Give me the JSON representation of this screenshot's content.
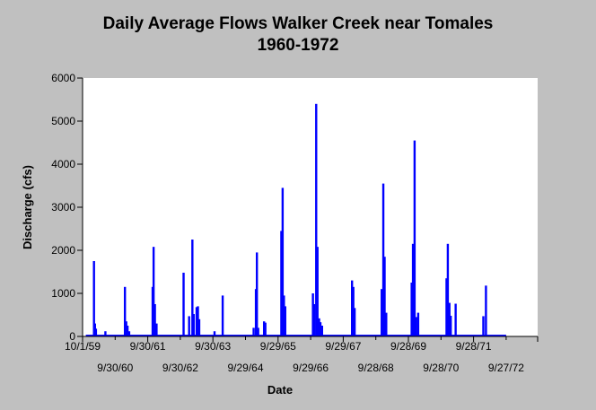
{
  "chart_data": {
    "type": "bar",
    "title": [
      "Daily Average Flows Walker Creek near Tomales",
      "1960-1972"
    ],
    "xlabel": "Date",
    "ylabel": "Discharge (cfs)",
    "ylim": [
      0,
      6000
    ],
    "yticks": [
      0,
      1000,
      2000,
      3000,
      4000,
      5000,
      6000
    ],
    "y_tick_labels": [
      "0",
      "1000",
      "2000",
      "3000",
      "4000",
      "5000",
      "6000"
    ],
    "x_tick_labels_row1": [
      "10/1/59",
      "9/30/61",
      "9/30/63",
      "9/29/65",
      "9/29/67",
      "9/28/69",
      "9/28/71"
    ],
    "x_tick_labels_row2": [
      "9/30/60",
      "9/30/62",
      "9/29/64",
      "9/29/66",
      "9/28/68",
      "9/28/70",
      "9/27/72"
    ],
    "grid": false,
    "bar_color": "#0000ff",
    "series": [
      {
        "values": [
          {
            "x": 1960.1,
            "y": 1750
          },
          {
            "x": 1960.13,
            "y": 300
          },
          {
            "x": 1960.16,
            "y": 180
          },
          {
            "x": 1960.45,
            "y": 120
          },
          {
            "x": 1961.05,
            "y": 1150
          },
          {
            "x": 1961.09,
            "y": 350
          },
          {
            "x": 1961.13,
            "y": 250
          },
          {
            "x": 1961.18,
            "y": 120
          },
          {
            "x": 1961.9,
            "y": 1150
          },
          {
            "x": 1961.93,
            "y": 2080
          },
          {
            "x": 1961.97,
            "y": 750
          },
          {
            "x": 1962.02,
            "y": 300
          },
          {
            "x": 1962.85,
            "y": 1480
          },
          {
            "x": 1963.02,
            "y": 470
          },
          {
            "x": 1963.12,
            "y": 2250
          },
          {
            "x": 1963.16,
            "y": 520
          },
          {
            "x": 1963.25,
            "y": 680
          },
          {
            "x": 1963.29,
            "y": 700
          },
          {
            "x": 1963.33,
            "y": 400
          },
          {
            "x": 1963.8,
            "y": 120
          },
          {
            "x": 1964.05,
            "y": 950
          },
          {
            "x": 1965.0,
            "y": 200
          },
          {
            "x": 1965.07,
            "y": 1100
          },
          {
            "x": 1965.1,
            "y": 1950
          },
          {
            "x": 1965.14,
            "y": 200
          },
          {
            "x": 1965.32,
            "y": 350
          },
          {
            "x": 1965.36,
            "y": 320
          },
          {
            "x": 1965.85,
            "y": 2450
          },
          {
            "x": 1965.89,
            "y": 3450
          },
          {
            "x": 1965.93,
            "y": 950
          },
          {
            "x": 1965.97,
            "y": 700
          },
          {
            "x": 1966.82,
            "y": 1000
          },
          {
            "x": 1966.86,
            "y": 750
          },
          {
            "x": 1966.92,
            "y": 5400
          },
          {
            "x": 1966.96,
            "y": 2080
          },
          {
            "x": 1967.01,
            "y": 420
          },
          {
            "x": 1967.05,
            "y": 330
          },
          {
            "x": 1967.1,
            "y": 250
          },
          {
            "x": 1968.02,
            "y": 1300
          },
          {
            "x": 1968.06,
            "y": 1150
          },
          {
            "x": 1968.1,
            "y": 660
          },
          {
            "x": 1968.93,
            "y": 1100
          },
          {
            "x": 1968.98,
            "y": 3550
          },
          {
            "x": 1969.02,
            "y": 1850
          },
          {
            "x": 1969.07,
            "y": 550
          },
          {
            "x": 1969.85,
            "y": 1250
          },
          {
            "x": 1969.89,
            "y": 2150
          },
          {
            "x": 1969.94,
            "y": 4550
          },
          {
            "x": 1969.99,
            "y": 450
          },
          {
            "x": 1970.05,
            "y": 550
          },
          {
            "x": 1970.92,
            "y": 1350
          },
          {
            "x": 1970.96,
            "y": 2150
          },
          {
            "x": 1971.01,
            "y": 780
          },
          {
            "x": 1971.05,
            "y": 480
          },
          {
            "x": 1971.2,
            "y": 760
          },
          {
            "x": 1972.05,
            "y": 470
          },
          {
            "x": 1972.13,
            "y": 1180
          }
        ]
      }
    ]
  }
}
